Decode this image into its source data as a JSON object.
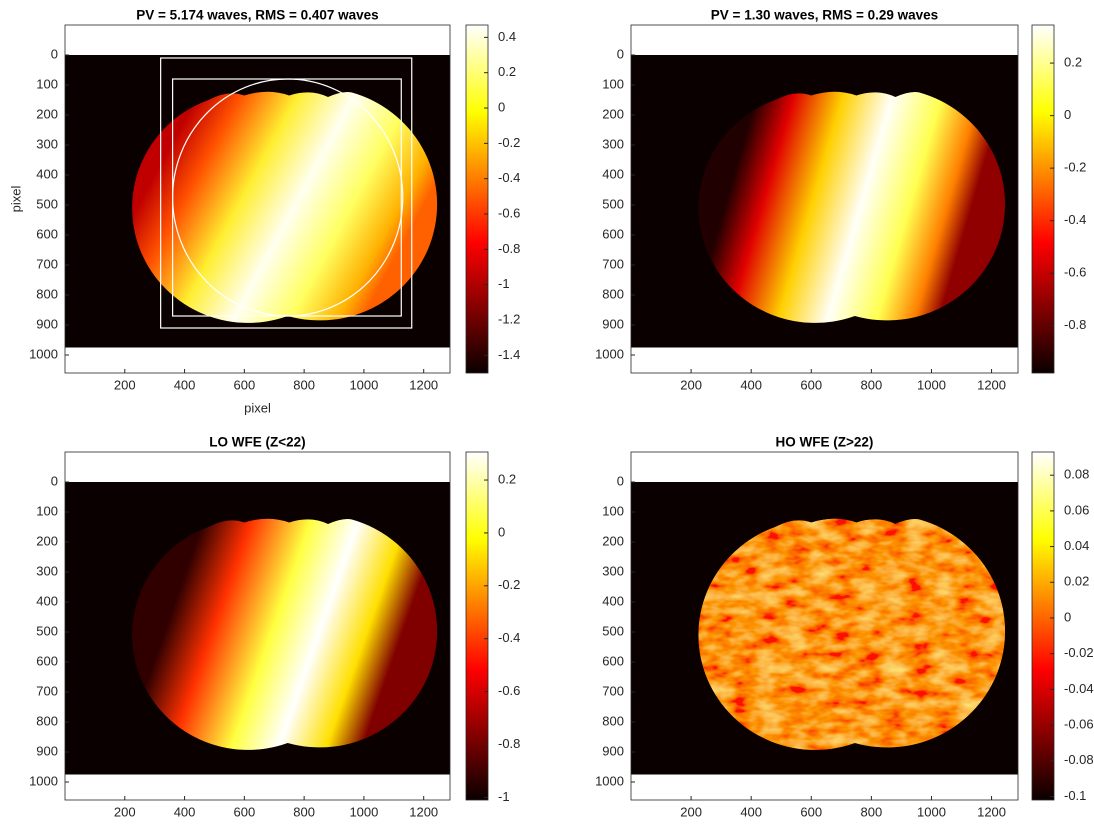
{
  "chart_data": [
    {
      "type": "heatmap",
      "title": "PV = 5.174 waves, RMS = 0.407 waves",
      "xlabel": "pixel",
      "ylabel": "pixel",
      "xlim": [
        0,
        1288
      ],
      "ylim": [
        -100,
        1060
      ],
      "y_reversed": true,
      "xticks": [
        200,
        400,
        600,
        800,
        1000,
        1200
      ],
      "yticks": [
        0,
        100,
        200,
        300,
        400,
        500,
        600,
        700,
        800,
        900,
        1000
      ],
      "colormap": "hot",
      "clim": [
        -1.5,
        0.47
      ],
      "cticks": [
        0.4,
        0.2,
        0,
        -0.2,
        -0.4,
        -0.6,
        -0.8,
        -1,
        -1.2,
        -1.4
      ]
    },
    {
      "type": "heatmap",
      "title": "PV = 1.30 waves, RMS = 0.29 waves",
      "xlim": [
        0,
        1288
      ],
      "ylim": [
        -100,
        1060
      ],
      "y_reversed": true,
      "xticks": [
        200,
        400,
        600,
        800,
        1000,
        1200
      ],
      "yticks": [
        0,
        100,
        200,
        300,
        400,
        500,
        600,
        700,
        800,
        900,
        1000
      ],
      "colormap": "hot",
      "clim": [
        -0.98,
        0.345
      ],
      "cticks": [
        0.2,
        0,
        -0.2,
        -0.4,
        -0.6,
        -0.8
      ]
    },
    {
      "type": "heatmap",
      "title": "LO WFE (Z<22)",
      "xlim": [
        0,
        1288
      ],
      "ylim": [
        -100,
        1060
      ],
      "y_reversed": true,
      "xticks": [
        200,
        400,
        600,
        800,
        1000,
        1200
      ],
      "yticks": [
        0,
        100,
        200,
        300,
        400,
        500,
        600,
        700,
        800,
        900,
        1000
      ],
      "colormap": "hot",
      "clim": [
        -1.01,
        0.306
      ],
      "cticks": [
        0.2,
        0,
        -0.2,
        -0.4,
        -0.6,
        -0.8,
        -1
      ]
    },
    {
      "type": "heatmap",
      "title": "HO WFE (Z>22)",
      "xlim": [
        0,
        1288
      ],
      "ylim": [
        -100,
        1060
      ],
      "y_reversed": true,
      "xticks": [
        200,
        400,
        600,
        800,
        1000,
        1200
      ],
      "yticks": [
        0,
        100,
        200,
        300,
        400,
        500,
        600,
        700,
        800,
        900,
        1000
      ],
      "colormap": "hot",
      "clim": [
        -0.102,
        0.093
      ],
      "cticks": [
        0.08,
        0.06,
        0.04,
        0.02,
        0,
        -0.02,
        -0.04,
        -0.06,
        -0.08,
        -0.1
      ]
    }
  ]
}
